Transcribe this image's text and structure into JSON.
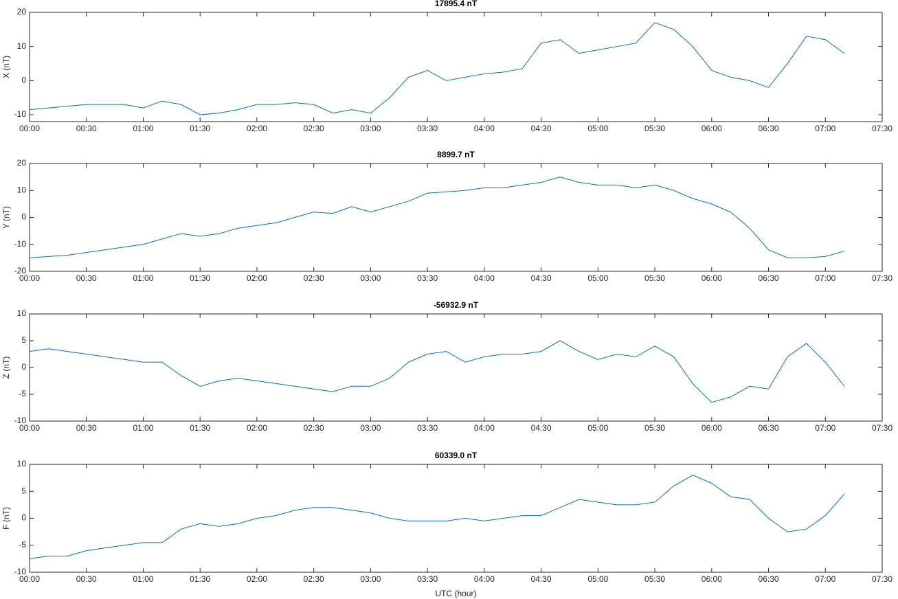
{
  "chart_data": [
    {
      "type": "line",
      "title": "17895.4 nT",
      "ylabel": "X (nT)",
      "x": [
        0,
        10,
        20,
        30,
        40,
        50,
        60,
        70,
        80,
        90,
        100,
        110,
        120,
        130,
        140,
        150,
        160,
        170,
        180,
        190,
        200,
        210,
        220,
        230,
        240,
        250,
        260,
        270,
        280,
        290,
        300,
        310,
        320,
        330,
        340,
        350,
        360,
        370,
        380,
        390,
        400,
        410,
        420,
        430
      ],
      "series": [
        {
          "name": "X",
          "color": "#0072bd",
          "values": [
            -8.5,
            -8,
            -7.5,
            -7,
            -7,
            -7,
            -8,
            -6,
            -7,
            -10,
            -9.5,
            -8.5,
            -7,
            -7,
            -6.5,
            -7,
            -9.5,
            -8.5,
            -9.5,
            -5,
            1,
            3,
            0,
            1,
            2,
            2.5,
            3.5,
            11,
            12,
            8,
            9,
            10,
            11,
            17,
            15,
            10,
            3,
            1,
            0,
            -2,
            5,
            13,
            12,
            8
          ]
        }
      ],
      "xlim": [
        0,
        450
      ],
      "xticks": [
        {
          "value": 0,
          "label": "00:00"
        },
        {
          "value": 30,
          "label": "00:30"
        },
        {
          "value": 60,
          "label": "01:00"
        },
        {
          "value": 90,
          "label": "01:30"
        },
        {
          "value": 120,
          "label": "02:00"
        },
        {
          "value": 150,
          "label": "02:30"
        },
        {
          "value": 180,
          "label": "03:00"
        },
        {
          "value": 210,
          "label": "03:30"
        },
        {
          "value": 240,
          "label": "04:00"
        },
        {
          "value": 270,
          "label": "04:30"
        },
        {
          "value": 300,
          "label": "05:00"
        },
        {
          "value": 330,
          "label": "05:30"
        },
        {
          "value": 360,
          "label": "06:00"
        },
        {
          "value": 390,
          "label": "06:30"
        },
        {
          "value": 420,
          "label": "07:00"
        },
        {
          "value": 450,
          "label": "07:30"
        }
      ],
      "ylim": [
        -12,
        20
      ],
      "yticks": [
        -10,
        0,
        10,
        20
      ]
    },
    {
      "type": "line",
      "title": "8899.7 nT",
      "ylabel": "Y (nT)",
      "x": [
        0,
        10,
        20,
        30,
        40,
        50,
        60,
        70,
        80,
        90,
        100,
        110,
        120,
        130,
        140,
        150,
        160,
        170,
        180,
        190,
        200,
        210,
        220,
        230,
        240,
        250,
        260,
        270,
        280,
        290,
        300,
        310,
        320,
        330,
        340,
        350,
        360,
        370,
        380,
        390,
        400,
        410,
        420,
        430
      ],
      "series": [
        {
          "name": "Y",
          "color": "#0072bd",
          "values": [
            -15,
            -14.5,
            -14,
            -13,
            -12,
            -11,
            -10,
            -8,
            -6,
            -7,
            -6,
            -4,
            -3,
            -2,
            0,
            2,
            1.5,
            4,
            2,
            4,
            6,
            9,
            9.5,
            10,
            11,
            11,
            12,
            13,
            15,
            13,
            12,
            12,
            11,
            12,
            10,
            7,
            5,
            2,
            -4,
            -12,
            -15,
            -15,
            -14.5,
            -12.5
          ]
        }
      ],
      "xlim": [
        0,
        450
      ],
      "xticks": [
        {
          "value": 0,
          "label": "00:00"
        },
        {
          "value": 30,
          "label": "00:30"
        },
        {
          "value": 60,
          "label": "01:00"
        },
        {
          "value": 90,
          "label": "01:30"
        },
        {
          "value": 120,
          "label": "02:00"
        },
        {
          "value": 150,
          "label": "02:30"
        },
        {
          "value": 180,
          "label": "03:00"
        },
        {
          "value": 210,
          "label": "03:30"
        },
        {
          "value": 240,
          "label": "04:00"
        },
        {
          "value": 270,
          "label": "04:30"
        },
        {
          "value": 300,
          "label": "05:00"
        },
        {
          "value": 330,
          "label": "05:30"
        },
        {
          "value": 360,
          "label": "06:00"
        },
        {
          "value": 390,
          "label": "06:30"
        },
        {
          "value": 420,
          "label": "07:00"
        },
        {
          "value": 450,
          "label": "07:30"
        }
      ],
      "ylim": [
        -20,
        20
      ],
      "yticks": [
        -20,
        -10,
        0,
        10,
        20
      ]
    },
    {
      "type": "line",
      "title": "-56932.9 nT",
      "ylabel": "Z (nT)",
      "x": [
        0,
        10,
        20,
        30,
        40,
        50,
        60,
        70,
        80,
        90,
        100,
        110,
        120,
        130,
        140,
        150,
        160,
        170,
        180,
        190,
        200,
        210,
        220,
        230,
        240,
        250,
        260,
        270,
        280,
        290,
        300,
        310,
        320,
        330,
        340,
        350,
        360,
        370,
        380,
        390,
        400,
        410,
        420,
        430
      ],
      "series": [
        {
          "name": "Z",
          "color": "#0072bd",
          "values": [
            3,
            3.5,
            3,
            2.5,
            2,
            1.5,
            1,
            1,
            -1.5,
            -3.5,
            -2.5,
            -2,
            -2.5,
            -3,
            -3.5,
            -4,
            -4.5,
            -3.5,
            -3.5,
            -2,
            1,
            2.5,
            3,
            1,
            2,
            2.5,
            2.5,
            3,
            5,
            3,
            1.5,
            2.5,
            2,
            4,
            2,
            -3,
            -6.5,
            -5.5,
            -3.5,
            -4,
            2,
            4.5,
            1,
            -3.5
          ]
        }
      ],
      "xlim": [
        0,
        450
      ],
      "xticks": [
        {
          "value": 0,
          "label": "00:00"
        },
        {
          "value": 30,
          "label": "00:30"
        },
        {
          "value": 60,
          "label": "01:00"
        },
        {
          "value": 90,
          "label": "01:30"
        },
        {
          "value": 120,
          "label": "02:00"
        },
        {
          "value": 150,
          "label": "02:30"
        },
        {
          "value": 180,
          "label": "03:00"
        },
        {
          "value": 210,
          "label": "03:30"
        },
        {
          "value": 240,
          "label": "04:00"
        },
        {
          "value": 270,
          "label": "04:30"
        },
        {
          "value": 300,
          "label": "05:00"
        },
        {
          "value": 330,
          "label": "05:30"
        },
        {
          "value": 360,
          "label": "06:00"
        },
        {
          "value": 390,
          "label": "06:30"
        },
        {
          "value": 420,
          "label": "07:00"
        },
        {
          "value": 450,
          "label": "07:30"
        }
      ],
      "ylim": [
        -10,
        10
      ],
      "yticks": [
        -10,
        -5,
        0,
        5,
        10
      ]
    },
    {
      "type": "line",
      "title": "60339.0 nT",
      "ylabel": "F (nT)",
      "xlabel": "UTC (hour)",
      "x": [
        0,
        10,
        20,
        30,
        40,
        50,
        60,
        70,
        80,
        90,
        100,
        110,
        120,
        130,
        140,
        150,
        160,
        170,
        180,
        190,
        200,
        210,
        220,
        230,
        240,
        250,
        260,
        270,
        280,
        290,
        300,
        310,
        320,
        330,
        340,
        350,
        360,
        370,
        380,
        390,
        400,
        410,
        420,
        430
      ],
      "series": [
        {
          "name": "F",
          "color": "#0072bd",
          "values": [
            -7.5,
            -7,
            -7,
            -6,
            -5.5,
            -5,
            -4.5,
            -4.5,
            -2,
            -1,
            -1.5,
            -1,
            0,
            0.5,
            1.5,
            2,
            2,
            1.5,
            1,
            0,
            -0.5,
            -0.5,
            -0.5,
            0,
            -0.5,
            0,
            0.5,
            0.5,
            2,
            3.5,
            3,
            2.5,
            2.5,
            3,
            6,
            8,
            6.5,
            4,
            3.5,
            0,
            -2.5,
            -2,
            0.5,
            4.5
          ]
        }
      ],
      "xlim": [
        0,
        450
      ],
      "xticks": [
        {
          "value": 0,
          "label": "00:00"
        },
        {
          "value": 30,
          "label": "00:30"
        },
        {
          "value": 60,
          "label": "01:00"
        },
        {
          "value": 90,
          "label": "01:30"
        },
        {
          "value": 120,
          "label": "02:00"
        },
        {
          "value": 150,
          "label": "02:30"
        },
        {
          "value": 180,
          "label": "03:00"
        },
        {
          "value": 210,
          "label": "03:30"
        },
        {
          "value": 240,
          "label": "04:00"
        },
        {
          "value": 270,
          "label": "04:30"
        },
        {
          "value": 300,
          "label": "05:00"
        },
        {
          "value": 330,
          "label": "05:30"
        },
        {
          "value": 360,
          "label": "06:00"
        },
        {
          "value": 390,
          "label": "06:30"
        },
        {
          "value": 420,
          "label": "07:00"
        },
        {
          "value": 450,
          "label": "07:30"
        }
      ],
      "ylim": [
        -10,
        10
      ],
      "yticks": [
        -10,
        -5,
        0,
        5,
        10
      ]
    }
  ]
}
